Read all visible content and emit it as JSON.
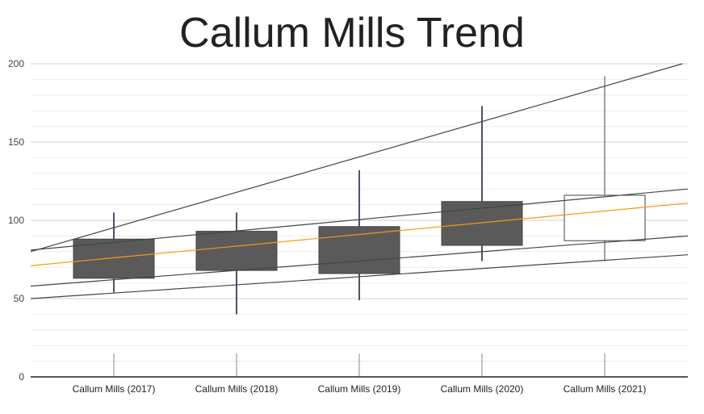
{
  "chart_data": {
    "type": "candlestick",
    "title": "Callum Mills Trend",
    "xlabel": "",
    "ylabel": "",
    "ylim": [
      0,
      200
    ],
    "yticks": [
      0,
      50,
      100,
      150,
      200
    ],
    "minor_grid_step": 10,
    "grid": true,
    "categories": [
      "Callum Mills (2017)",
      "Callum Mills (2018)",
      "Callum Mills (2019)",
      "Callum Mills (2020)",
      "Callum Mills (2021)"
    ],
    "candles": [
      {
        "low": 54,
        "open": 63,
        "close": 88,
        "high": 105
      },
      {
        "low": 40,
        "open": 68,
        "close": 93,
        "high": 105
      },
      {
        "low": 49,
        "open": 66,
        "close": 96,
        "high": 132
      },
      {
        "low": 74,
        "open": 84,
        "close": 112,
        "high": 173
      },
      {
        "low": 74,
        "open": 87,
        "close": 116,
        "high": 192
      }
    ],
    "trendlines": [
      {
        "color": "#444444",
        "start": 80,
        "end": 201
      },
      {
        "color": "#444444",
        "start": 81,
        "end": 120
      },
      {
        "color": "#f39c12",
        "start": 71,
        "end": 111
      },
      {
        "color": "#444444",
        "start": 58,
        "end": 90
      },
      {
        "color": "#444444",
        "start": 50,
        "end": 78
      }
    ],
    "colors": {
      "candle_fill": "#5a5a5a",
      "candle_hollow_fill": "#ffffff",
      "candle_stroke": "#444444",
      "wick": "#4a5568",
      "grid": "#e0e0e0",
      "axis": "#222222"
    }
  }
}
